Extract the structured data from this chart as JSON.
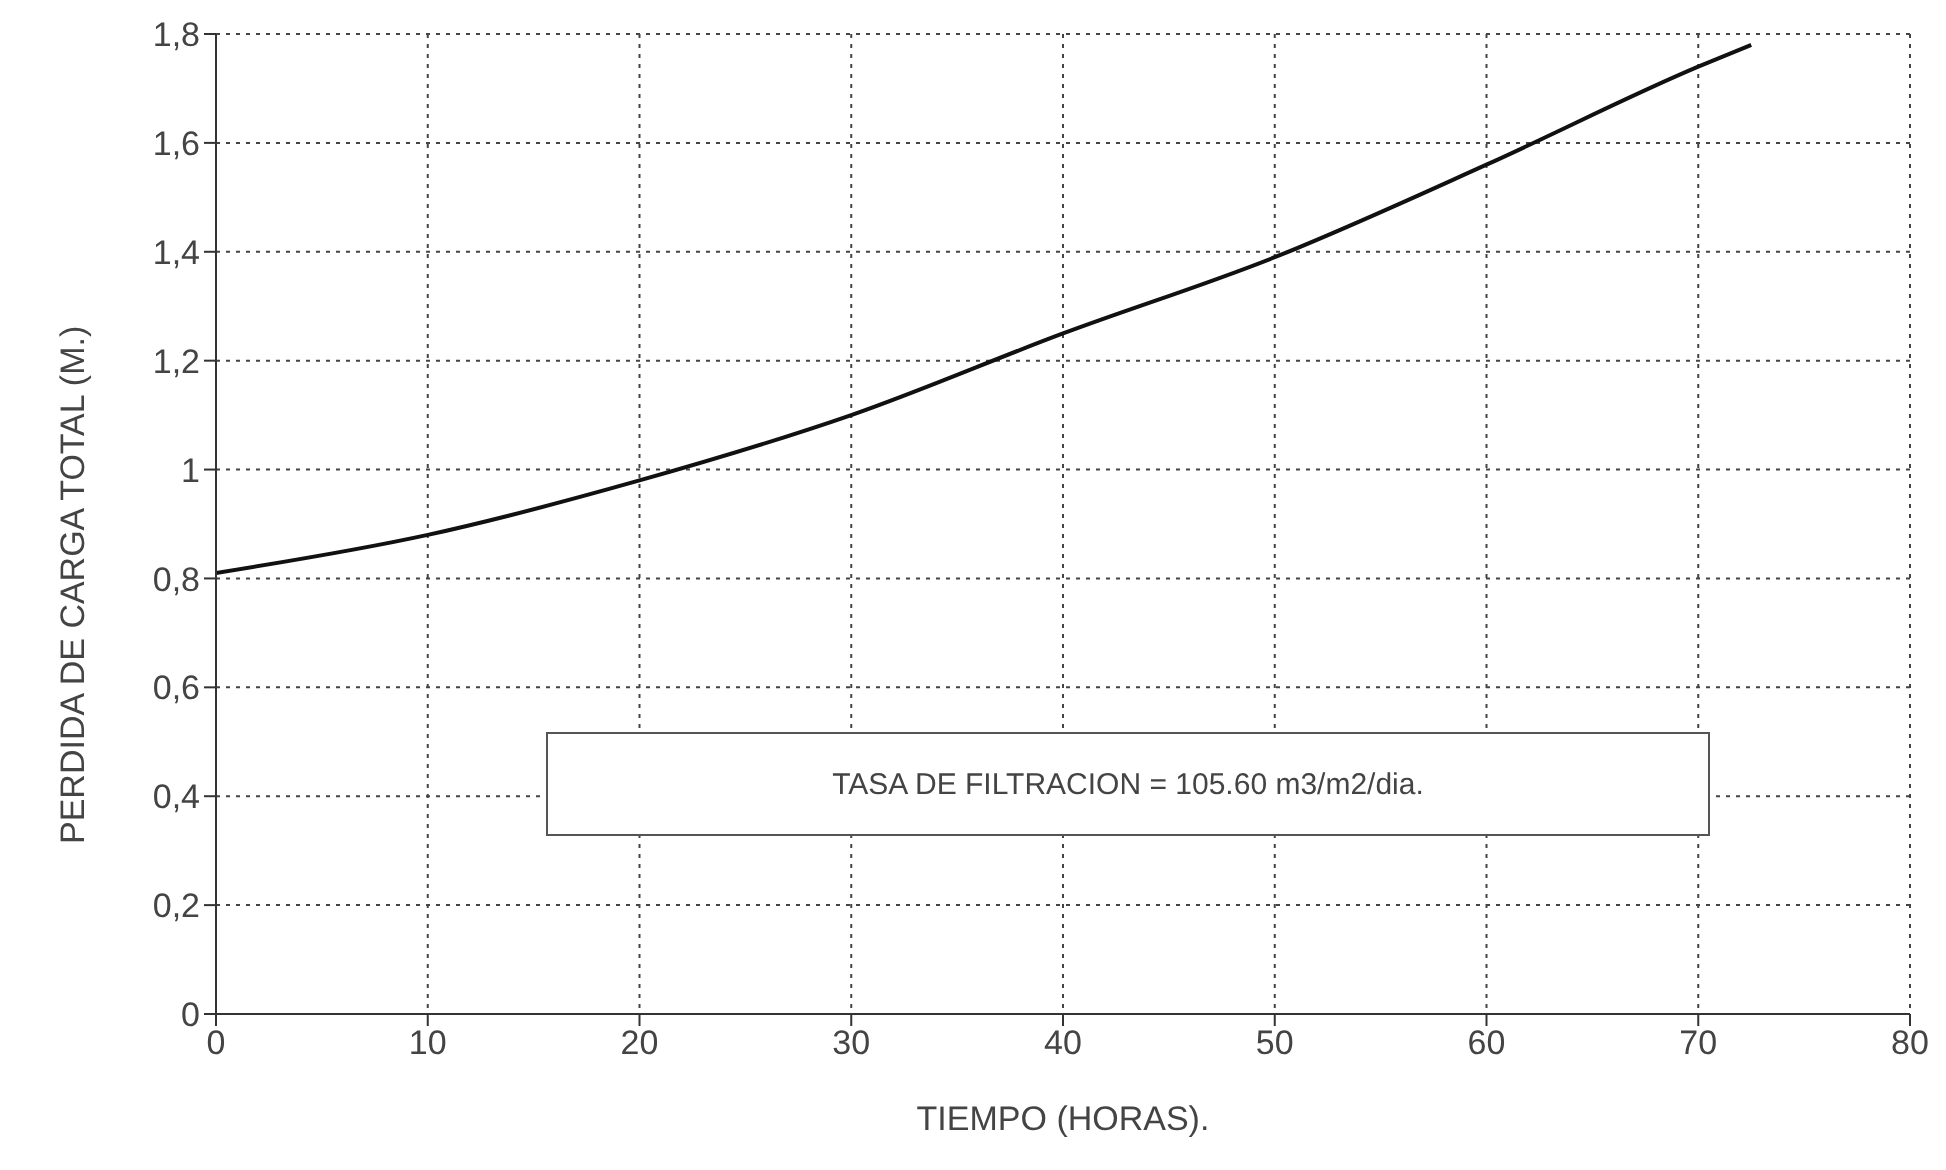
{
  "chart_data": {
    "type": "line",
    "xlabel": "TIEMPO (HORAS).",
    "ylabel": "PERDIDA DE CARGA TOTAL (M.)",
    "x": [
      0,
      10,
      20,
      30,
      40,
      50,
      60,
      70,
      72.5
    ],
    "series": [
      {
        "color": "#111111",
        "values": [
          0.81,
          0.88,
          0.98,
          1.1,
          1.25,
          1.39,
          1.56,
          1.74,
          1.78
        ]
      }
    ],
    "xlim": [
      0,
      80
    ],
    "xticks": [
      0,
      10,
      20,
      30,
      40,
      50,
      60,
      70,
      80
    ],
    "ylim": [
      0,
      1.8
    ],
    "yticks": [
      0,
      {
        "value": 0.2,
        "label": "0,2"
      },
      {
        "value": 0.4,
        "label": "0,4"
      },
      {
        "value": 0.6,
        "label": "0,6"
      },
      {
        "value": 0.8,
        "label": "0,8"
      },
      1,
      {
        "value": 1.2,
        "label": "1,2"
      },
      {
        "value": 1.4,
        "label": "1,4"
      },
      {
        "value": 1.6,
        "label": "1,6"
      },
      {
        "value": 1.8,
        "label": "1,8"
      }
    ],
    "grid": true,
    "marker": "none",
    "line_style": "solid",
    "legend": false,
    "annotations": [
      "TASA DE FILTRACION = 105.60 m3/m2/dia."
    ]
  }
}
